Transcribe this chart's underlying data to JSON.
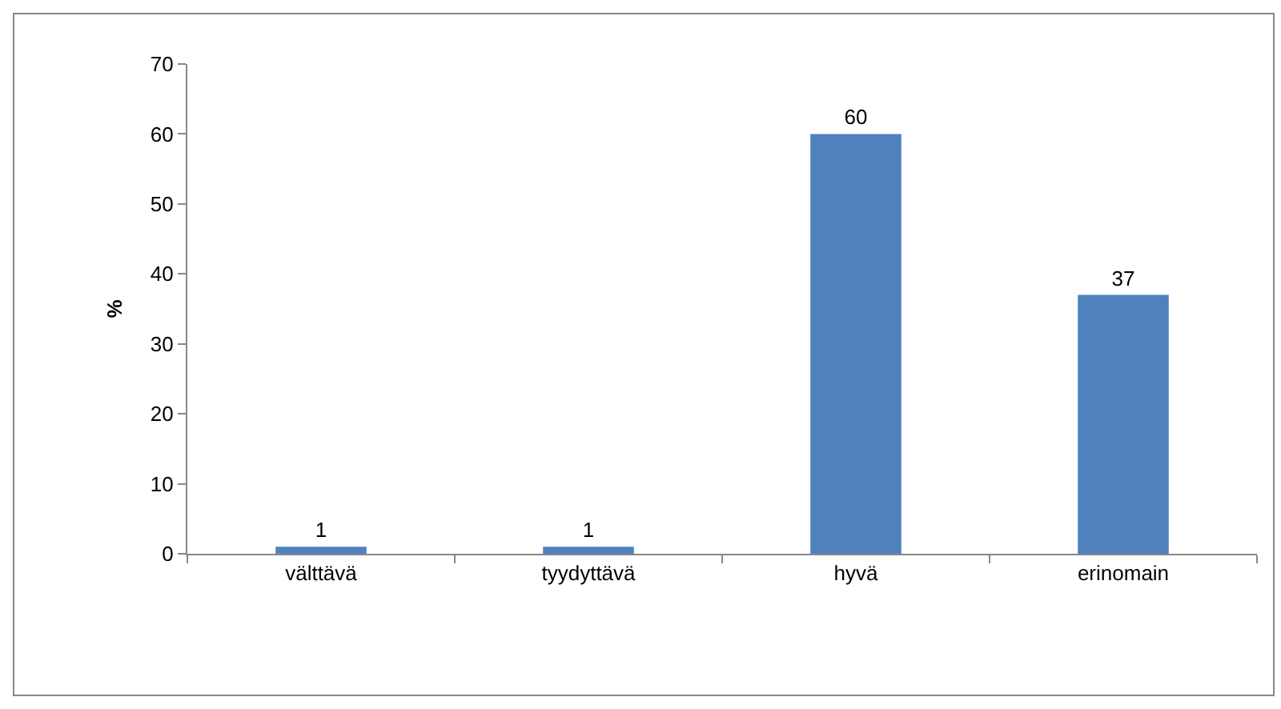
{
  "chart_data": {
    "type": "bar",
    "ylabel": "%",
    "categories": [
      "välttävä",
      "tyydyttävä",
      "hyvä",
      "erinomain"
    ],
    "values": [
      1,
      1,
      60,
      37
    ],
    "color": "#4f81bd",
    "ylim": [
      0,
      70
    ],
    "yticks": [
      0,
      10,
      20,
      30,
      40,
      50,
      60,
      70
    ],
    "grid": false,
    "legend": false,
    "data_labels": true
  }
}
